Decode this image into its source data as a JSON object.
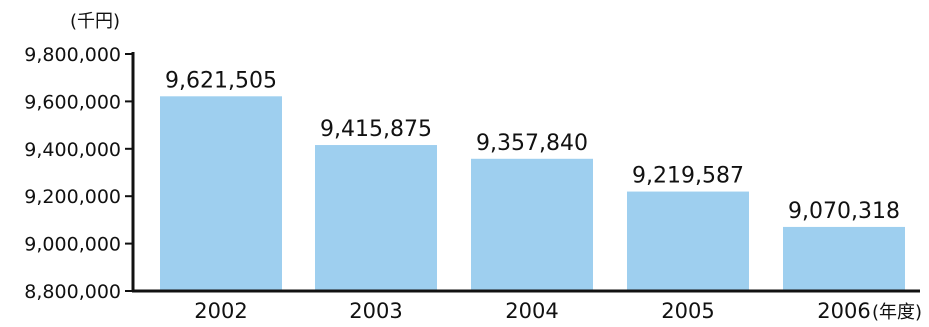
{
  "chart_data": {
    "type": "bar",
    "categories": [
      "2002",
      "2003",
      "2004",
      "2005",
      "2006"
    ],
    "values": [
      9621505,
      9415875,
      9357840,
      9219587,
      9070318
    ],
    "value_labels": [
      "9,621,505",
      "9,415,875",
      "9,357,840",
      "9,219,587",
      "9,070,318"
    ],
    "y_unit_label": "(千円)",
    "x_unit_label": "(年度)",
    "ylim": [
      8800000,
      9800000
    ],
    "yticks": [
      8800000,
      9000000,
      9200000,
      9400000,
      9600000,
      9800000
    ],
    "ytick_labels": [
      "8,800,000",
      "9,000,000",
      "9,200,000",
      "9,400,000",
      "9,600,000",
      "9,800,000"
    ],
    "grid": false,
    "bar_color": "#9ECFEF",
    "axis_color": "#111111"
  }
}
